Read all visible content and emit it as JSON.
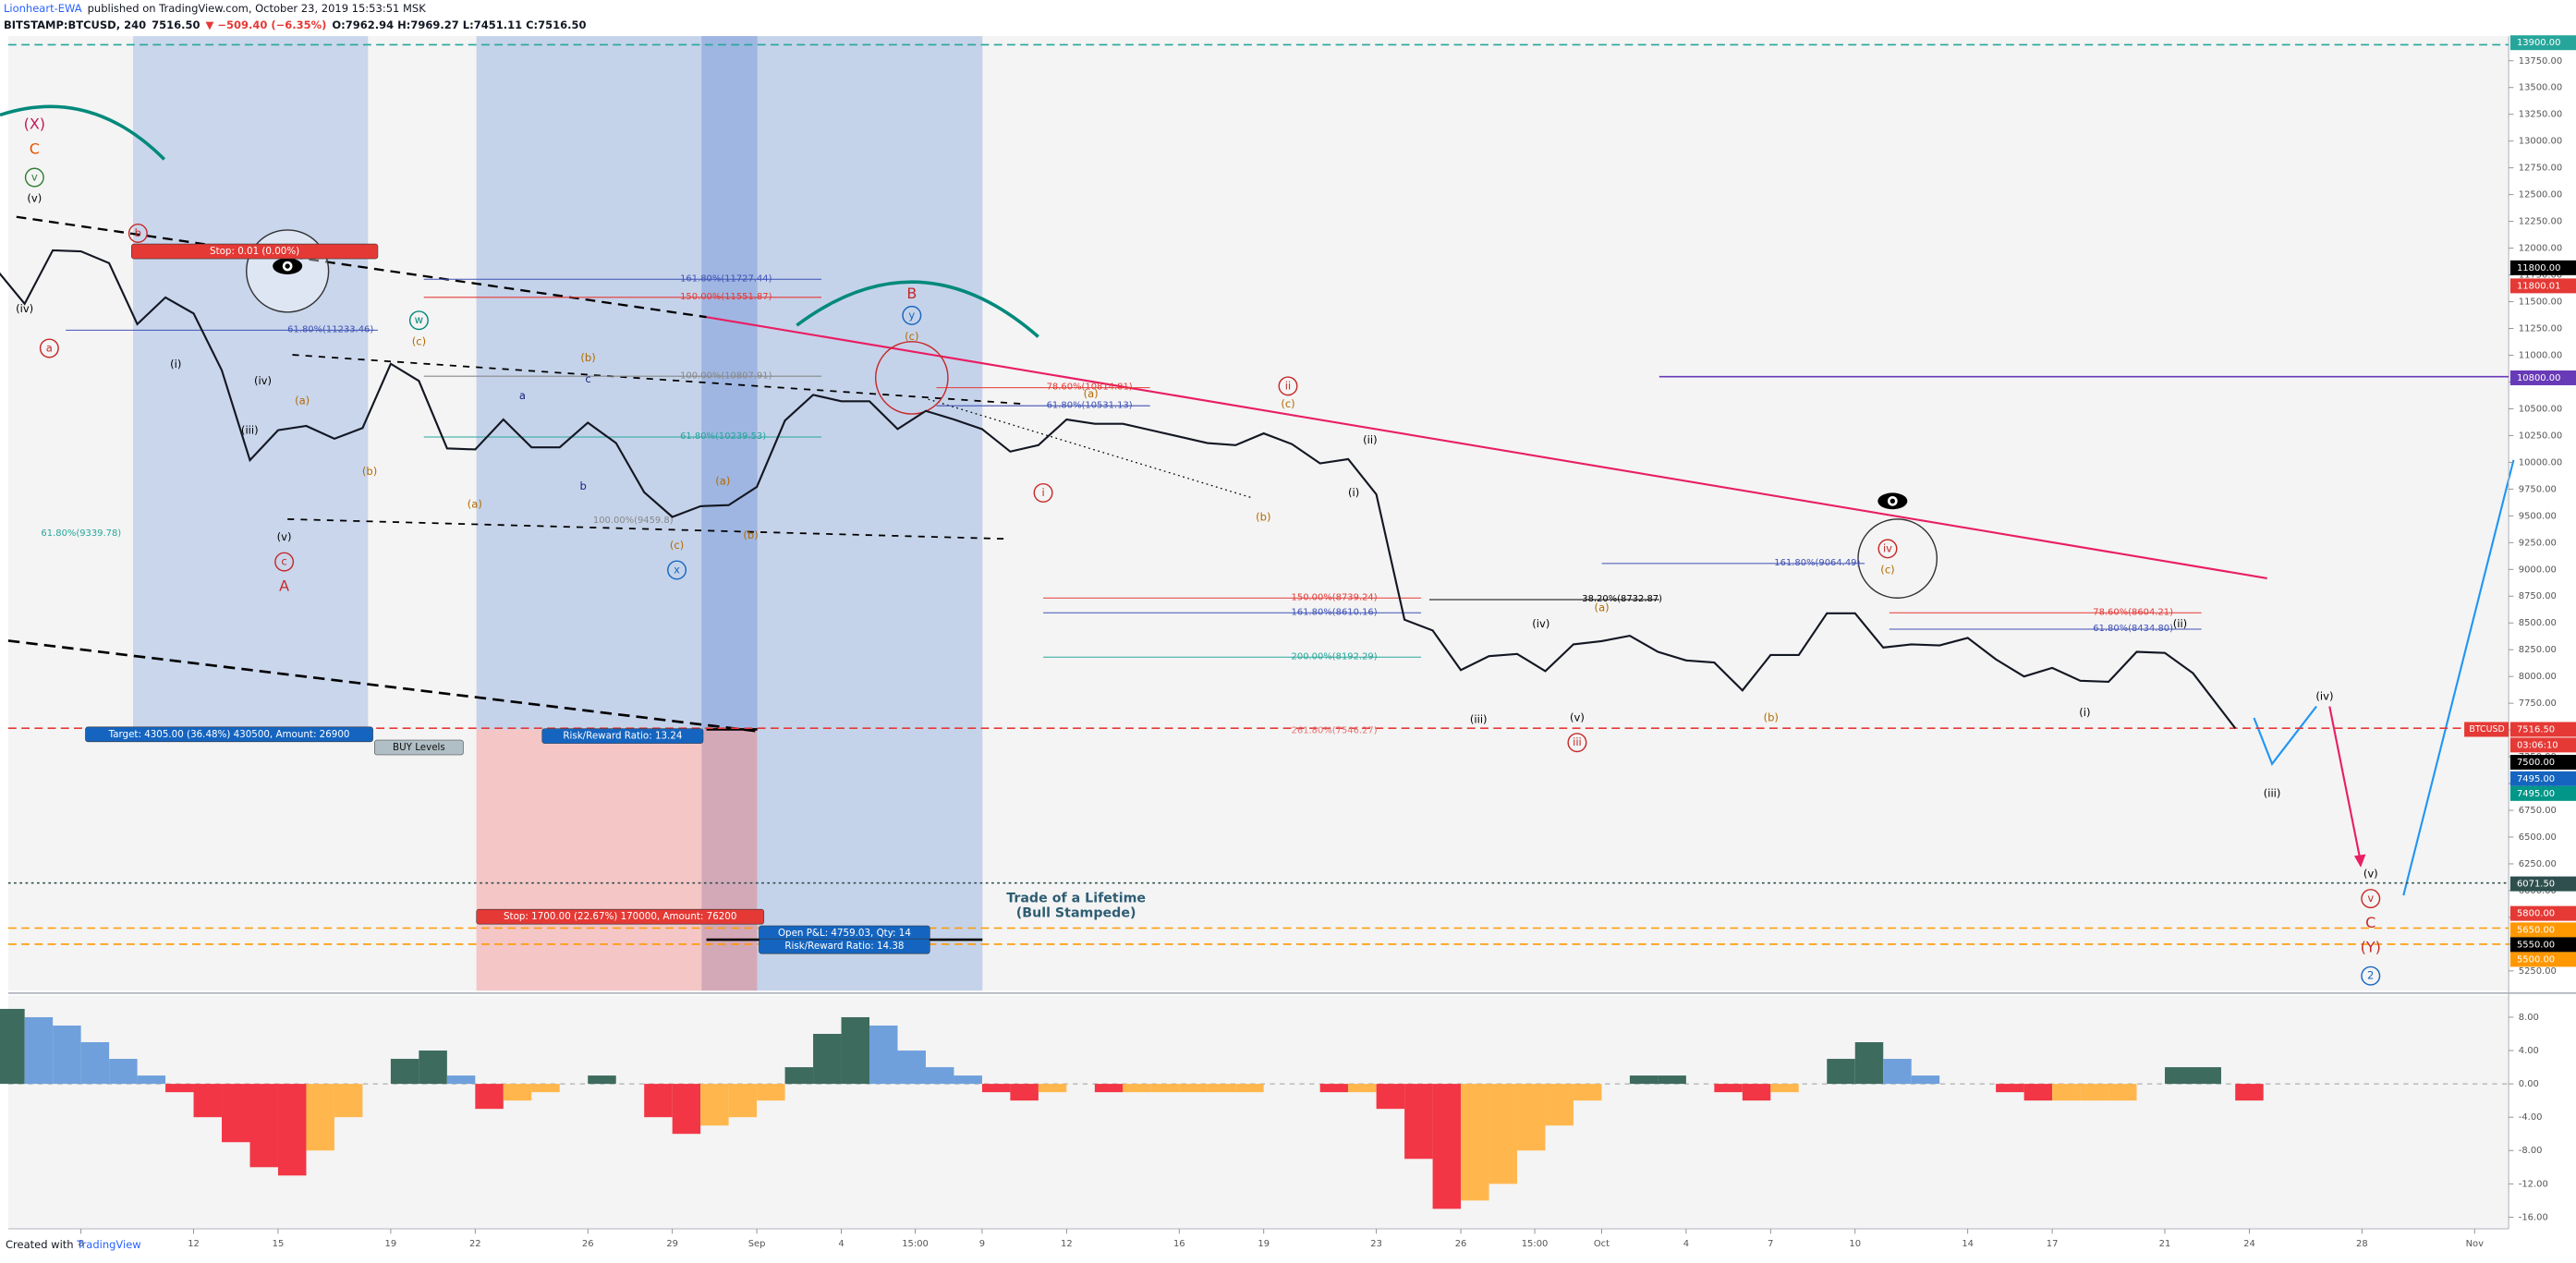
{
  "header": {
    "author": "Lionheart-EWA",
    "published": "published on TradingView.com, October 23, 2019 15:53:51 MSK",
    "symbol": "BITSTAMP:BTCUSD, 240",
    "last": "7516.50",
    "change": "▼ −509.40 (−6.35%)",
    "ohlc": "O:7962.94 H:7969.27 L:7451.11 C:7516.50"
  },
  "footer": {
    "created": "Created with",
    "brand": "TradingView"
  },
  "chart_data": [
    {
      "type": "line",
      "color": "#131722",
      "grid": false,
      "x": [
        "2019-08-05T00:00",
        "2019-08-06T00:00",
        "2019-08-07T00:00",
        "2019-08-08T00:00",
        "2019-08-09T00:00",
        "2019-08-10T00:00",
        "2019-08-11T00:00",
        "2019-08-12T00:00",
        "2019-08-13T00:00",
        "2019-08-14T00:00",
        "2019-08-15T00:00",
        "2019-08-16T00:00",
        "2019-08-17T00:00",
        "2019-08-18T00:00",
        "2019-08-19T00:00",
        "2019-08-20T00:00",
        "2019-08-21T00:00",
        "2019-08-22T00:00",
        "2019-08-23T00:00",
        "2019-08-24T00:00",
        "2019-08-25T00:00",
        "2019-08-26T00:00",
        "2019-08-27T00:00",
        "2019-08-28T00:00",
        "2019-08-29T00:00",
        "2019-08-30T00:00",
        "2019-08-31T00:00",
        "2019-09-01T00:00",
        "2019-09-02T00:00",
        "2019-09-03T00:00",
        "2019-09-04T00:00",
        "2019-09-05T00:00",
        "2019-09-06T00:00",
        "2019-09-07T00:00",
        "2019-09-08T00:00",
        "2019-09-09T00:00",
        "2019-09-10T00:00",
        "2019-09-11T00:00",
        "2019-09-12T00:00",
        "2019-09-13T00:00",
        "2019-09-14T00:00",
        "2019-09-15T00:00",
        "2019-09-16T00:00",
        "2019-09-17T00:00",
        "2019-09-18T00:00",
        "2019-09-19T00:00",
        "2019-09-20T00:00",
        "2019-09-21T00:00",
        "2019-09-22T00:00",
        "2019-09-23T00:00",
        "2019-09-24T00:00",
        "2019-09-25T00:00",
        "2019-09-26T00:00",
        "2019-09-27T00:00",
        "2019-09-28T00:00",
        "2019-09-29T00:00",
        "2019-09-30T00:00",
        "2019-10-01T00:00",
        "2019-10-02T00:00",
        "2019-10-03T00:00",
        "2019-10-04T00:00",
        "2019-10-05T00:00",
        "2019-10-06T00:00",
        "2019-10-07T00:00",
        "2019-10-08T00:00",
        "2019-10-09T00:00",
        "2019-10-10T00:00",
        "2019-10-11T00:00",
        "2019-10-12T00:00",
        "2019-10-13T00:00",
        "2019-10-14T00:00",
        "2019-10-15T00:00",
        "2019-10-16T00:00",
        "2019-10-17T00:00",
        "2019-10-18T00:00",
        "2019-10-19T00:00",
        "2019-10-20T00:00",
        "2019-10-21T00:00",
        "2019-10-22T00:00",
        "2019-10-23T12:00"
      ],
      "values": [
        11800,
        11480,
        11980,
        11970,
        11860,
        11290,
        11540,
        11390,
        10860,
        10020,
        10300,
        10340,
        10220,
        10320,
        10920,
        10760,
        10130,
        10120,
        10400,
        10140,
        10140,
        10370,
        10180,
        9720,
        9490,
        9590,
        9600,
        9770,
        10390,
        10630,
        10570,
        10570,
        10310,
        10480,
        10400,
        10310,
        10100,
        10160,
        10400,
        10360,
        10360,
        10300,
        10240,
        10180,
        10160,
        10270,
        10170,
        9990,
        10030,
        9700,
        8530,
        8430,
        8060,
        8190,
        8210,
        8050,
        8300,
        8330,
        8380,
        8230,
        8150,
        8130,
        7870,
        8200,
        8200,
        8590,
        8590,
        8270,
        8300,
        8290,
        8360,
        8160,
        8000,
        8080,
        7960,
        7950,
        8230,
        8220,
        8030,
        7516.5
      ],
      "xlim": [
        "2019-08-05T10:00",
        "2019-11-02T05:00"
      ],
      "xticks": [
        {
          "value": "2019-08-08T00:00",
          "label": "8"
        },
        {
          "value": "2019-08-12T00:00",
          "label": "12"
        },
        {
          "value": "2019-08-15T00:00",
          "label": "15"
        },
        {
          "value": "2019-08-19T00:00",
          "label": "19"
        },
        {
          "value": "2019-08-22T00:00",
          "label": "22"
        },
        {
          "value": "2019-08-26T00:00",
          "label": "26"
        },
        {
          "value": "2019-08-29T00:00",
          "label": "29"
        },
        {
          "value": "2019-09-01T00:00",
          "label": "Sep"
        },
        {
          "value": "2019-09-04T00:00",
          "label": "4"
        },
        {
          "value": "2019-09-06T15:00",
          "label": "15:00"
        },
        {
          "value": "2019-09-09T00:00",
          "label": "9"
        },
        {
          "value": "2019-09-12T00:00",
          "label": "12"
        },
        {
          "value": "2019-09-16T00:00",
          "label": "16"
        },
        {
          "value": "2019-09-19T00:00",
          "label": "19"
        },
        {
          "value": "2019-09-23T00:00",
          "label": "23"
        },
        {
          "value": "2019-09-26T00:00",
          "label": "26"
        },
        {
          "value": "2019-09-28T15:00",
          "label": "15:00"
        },
        {
          "value": "2019-10-01T00:00",
          "label": "Oct"
        },
        {
          "value": "2019-10-04T00:00",
          "label": "4"
        },
        {
          "value": "2019-10-07T00:00",
          "label": "7"
        },
        {
          "value": "2019-10-10T00:00",
          "label": "10"
        },
        {
          "value": "2019-10-14T00:00",
          "label": "14"
        },
        {
          "value": "2019-10-17T00:00",
          "label": "17"
        },
        {
          "value": "2019-10-21T00:00",
          "label": "21"
        },
        {
          "value": "2019-10-24T00:00",
          "label": "24"
        },
        {
          "value": "2019-10-28T00:00",
          "label": "28"
        },
        {
          "value": "2019-11-01T00:00",
          "label": "Nov"
        }
      ],
      "ylim": [
        5066,
        13980
      ],
      "yticks": [
        {
          "value": 5250,
          "label": "5250.00"
        },
        {
          "value": 5500,
          "label": "5500.00"
        },
        {
          "value": 5750,
          "label": "5750.00"
        },
        {
          "value": 6000,
          "label": "6000.00"
        },
        {
          "value": 6250,
          "label": "6250.00"
        },
        {
          "value": 6500,
          "label": "6500.00"
        },
        {
          "value": 6750,
          "label": "6750.00"
        },
        {
          "value": 7000,
          "label": "7000.00"
        },
        {
          "value": 7250,
          "label": "7250.00"
        },
        {
          "value": 7500,
          "label": "7500.00"
        },
        {
          "value": 7750,
          "label": "7750.00"
        },
        {
          "value": 8000,
          "label": "8000.00"
        },
        {
          "value": 8250,
          "label": "8250.00"
        },
        {
          "value": 8500,
          "label": "8500.00"
        },
        {
          "value": 8750,
          "label": "8750.00"
        },
        {
          "value": 9000,
          "label": "9000.00"
        },
        {
          "value": 9250,
          "label": "9250.00"
        },
        {
          "value": 9500,
          "label": "9500.00"
        },
        {
          "value": 9750,
          "label": "9750.00"
        },
        {
          "value": 10000,
          "label": "10000.00"
        },
        {
          "value": 10250,
          "label": "10250.00"
        },
        {
          "value": 10500,
          "label": "10500.00"
        },
        {
          "value": 10750,
          "label": "10750.00"
        },
        {
          "value": 11000,
          "label": "11000.00"
        },
        {
          "value": 11250,
          "label": "11250.00"
        },
        {
          "value": 11500,
          "label": "11500.00"
        },
        {
          "value": 11750,
          "label": "11750.00"
        },
        {
          "value": 12000,
          "label": "12000.00"
        },
        {
          "value": 12250,
          "label": "12250.00"
        },
        {
          "value": 12500,
          "label": "12500.00"
        },
        {
          "value": 12750,
          "label": "12750.00"
        },
        {
          "value": 13000,
          "label": "13000.00"
        },
        {
          "value": 13250,
          "label": "13250.00"
        },
        {
          "value": 13500,
          "label": "13500.00"
        },
        {
          "value": 13750,
          "label": "13750.00"
        }
      ],
      "price_lines": [
        {
          "value": 13900,
          "label": "13900.00",
          "color": "#26a69a",
          "line": "dashed"
        },
        {
          "value": 11800,
          "label": "11800.00",
          "color": "#000000"
        },
        {
          "value": 11800.01,
          "label": "11800.01",
          "color": "#e53935"
        },
        {
          "value": 10800,
          "label": "10800.00",
          "color": "#673ab7",
          "line": "solid"
        },
        {
          "value": 7516.5,
          "label": "7516.50",
          "color": "#e53935",
          "line": "dashed"
        },
        {
          "value": 7500,
          "label": "7500.00",
          "color": "#000000"
        },
        {
          "value": 7495,
          "label": "7495.00",
          "color": "#1565c0"
        },
        {
          "value": 7495,
          "label": "7495.00",
          "color": "#009688"
        },
        {
          "value": 6071.5,
          "label": "6071.50",
          "color": "#2f4f4f",
          "line": "dotted"
        },
        {
          "value": 5800,
          "label": "5800.00",
          "color": "#e53935"
        },
        {
          "value": 5650,
          "label": "5650.00",
          "color": "#ff9800",
          "line": "dashed"
        },
        {
          "value": 5550,
          "label": "5550.00",
          "color": "#000000"
        },
        {
          "value": 5500,
          "label": "5500.00",
          "color": "#ff9800",
          "line": "dashed"
        }
      ],
      "symbol": "BTCUSD",
      "countdown": "03:06:10",
      "annotations": [
        {
          "text": "(X)",
          "color": "#c2185b"
        },
        {
          "text": "C",
          "color": "#e65100"
        },
        {
          "text": "v",
          "color": "#2e7d32",
          "circled": true
        },
        {
          "text": "(v)",
          "color": "#000000"
        },
        {
          "text": "a",
          "color": "#c62828",
          "circled": true
        },
        {
          "text": "b",
          "color": "#c62828",
          "circled": true
        },
        {
          "text": "(iv)",
          "color": "#000000"
        },
        {
          "text": "(i)",
          "color": "#000000"
        },
        {
          "text": "(iv)",
          "color": "#000000"
        },
        {
          "text": "(iii)",
          "color": "#000000"
        },
        {
          "text": "(a)",
          "color": "#b26a00"
        },
        {
          "text": "(b)",
          "color": "#b26a00"
        },
        {
          "text": "(v)",
          "color": "#000000"
        },
        {
          "text": "c",
          "color": "#c62828",
          "circled": true
        },
        {
          "text": "A",
          "color": "#c62828"
        },
        {
          "text": "w",
          "color": "#00897b",
          "circled": true
        },
        {
          "text": "(c)",
          "color": "#b26a00"
        },
        {
          "text": "(a)",
          "color": "#b26a00"
        },
        {
          "text": "a",
          "color": "#1a237e"
        },
        {
          "text": "b",
          "color": "#1a237e"
        },
        {
          "text": "c",
          "color": "#1a237e"
        },
        {
          "text": "(b)",
          "color": "#b26a00"
        },
        {
          "text": "(a)",
          "color": "#b26a00"
        },
        {
          "text": "(b)",
          "color": "#b26a00"
        },
        {
          "text": "(c)",
          "color": "#b26a00"
        },
        {
          "text": "x",
          "color": "#1565c0",
          "circled": true
        },
        {
          "text": "B",
          "color": "#c62828"
        },
        {
          "text": "y",
          "color": "#1565c0",
          "circled": true
        },
        {
          "text": "(c)",
          "color": "#b26a00"
        },
        {
          "text": "(a)",
          "color": "#b26a00"
        },
        {
          "text": "i",
          "color": "#c62828",
          "circled": true
        },
        {
          "text": "ii",
          "color": "#c62828",
          "circled": true
        },
        {
          "text": "(c)",
          "color": "#b26a00"
        },
        {
          "text": "(b)",
          "color": "#b26a00"
        },
        {
          "text": "(ii)",
          "color": "#000000"
        },
        {
          "text": "(i)",
          "color": "#000000"
        },
        {
          "text": "(iv)",
          "color": "#000000"
        },
        {
          "text": "(iii)",
          "color": "#000000"
        },
        {
          "text": "(v)",
          "color": "#000000"
        },
        {
          "text": "iii",
          "color": "#c62828",
          "circled": true
        },
        {
          "text": "(a)",
          "color": "#b26a00"
        },
        {
          "text": "(b)",
          "color": "#b26a00"
        },
        {
          "text": "iv",
          "color": "#c62828",
          "circled": true
        },
        {
          "text": "(c)",
          "color": "#b26a00"
        },
        {
          "text": "(ii)",
          "color": "#000000"
        },
        {
          "text": "(i)",
          "color": "#000000"
        },
        {
          "text": "(iv)",
          "color": "#000000"
        },
        {
          "text": "(iii)",
          "color": "#000000"
        },
        {
          "text": "(v)",
          "color": "#000000"
        },
        {
          "text": "v",
          "color": "#c62828",
          "circled": true
        },
        {
          "text": "C",
          "color": "#c62828"
        },
        {
          "text": "(Y)",
          "color": "#c62828"
        },
        {
          "text": "2",
          "color": "#1565c0",
          "circled": true
        }
      ],
      "levels": [
        {
          "text": "161.80%(11727.44)",
          "color": "#3f51b5"
        },
        {
          "text": "150.00%(11551.87)",
          "color": "#e53935"
        },
        {
          "text": "61.80%(11233.46)",
          "color": "#3f51b5"
        },
        {
          "text": "100.00%(10807.91)",
          "color": "#888888"
        },
        {
          "text": "61.80%(10239.53)",
          "color": "#26a69a"
        },
        {
          "text": "61.80%(9339.78)",
          "color": "#26a69a"
        },
        {
          "text": "100.00%(9459.8)",
          "color": "#888888"
        },
        {
          "text": "78.60%(10814.81)",
          "color": "#e53935"
        },
        {
          "text": "61.80%(10531.13)",
          "color": "#3f51b5"
        },
        {
          "text": "161.80%(9064.49)",
          "color": "#3f51b5"
        },
        {
          "text": "150.00%(8739.24)",
          "color": "#e53935"
        },
        {
          "text": "161.80%(8610.16)",
          "color": "#3f51b5"
        },
        {
          "text": "38.20%(8732.87)",
          "color": "#000000"
        },
        {
          "text": "200.00%(8192.29)",
          "color": "#26a69a"
        },
        {
          "text": "78.60%(8604.21)",
          "color": "#e53935"
        },
        {
          "text": "61.80%(8434.80)",
          "color": "#3f51b5"
        },
        {
          "text": "261.80%(7546.27)",
          "color": "#e57373"
        }
      ],
      "boxes": [
        {
          "text": "Target: 4305.00 (36.48%) 430500, Amount: 26900",
          "color": "#1565c0"
        },
        {
          "text": "Risk/Reward Ratio: 13.24",
          "color": "#1565c0"
        },
        {
          "text": "Stop: 1700.00 (22.67%) 170000, Amount: 76200",
          "color": "#e53935"
        },
        {
          "text": "Open P&L: 4759.03, Qty: 14",
          "color": "#1565c0"
        },
        {
          "text": "Risk/Reward Ratio: 14.38",
          "color": "#1565c0"
        },
        {
          "text": "Stop: 0.01 (0.00%)",
          "color": "#e53935"
        },
        {
          "text": "BUY Levels",
          "color": "#b0bec5"
        }
      ],
      "notes": [
        "Trade of a Lifetime",
        "(Bull Stampede)"
      ]
    },
    {
      "type": "bar",
      "colors": [
        "#3d6b5e",
        "#6fa0dc",
        "#f23645",
        "#ffb74d"
      ],
      "values": [
        9,
        8,
        7,
        5,
        3,
        1,
        -1,
        -4,
        -7,
        -10,
        -11,
        -8,
        -4,
        0,
        3,
        4,
        1,
        -3,
        -2,
        -1,
        0,
        1,
        0,
        -4,
        -6,
        -5,
        -4,
        -2,
        2,
        6,
        8,
        7,
        4,
        2,
        1,
        -1,
        -2,
        -1,
        0,
        -1,
        -1,
        -1,
        -1,
        -1,
        -1,
        0,
        0,
        -1,
        -1,
        -3,
        -9,
        -15,
        -14,
        -12,
        -8,
        -5,
        -2,
        0,
        1,
        1,
        0,
        -1,
        -2,
        -1,
        0,
        3,
        5,
        3,
        1,
        0,
        0,
        -1,
        -2,
        -2,
        -2,
        -2,
        0,
        2,
        2,
        -2
      ],
      "ylim": [
        -17.4,
        10.6
      ],
      "yticks": [
        {
          "value": 8,
          "label": "8.00"
        },
        {
          "value": 4,
          "label": "4.00"
        },
        {
          "value": 0,
          "label": "0.00"
        },
        {
          "value": -4,
          "label": "-4.00"
        },
        {
          "value": -8,
          "label": "-8.00"
        },
        {
          "value": -12,
          "label": "-12.00"
        },
        {
          "value": -16,
          "label": "-16.00"
        }
      ]
    }
  ]
}
